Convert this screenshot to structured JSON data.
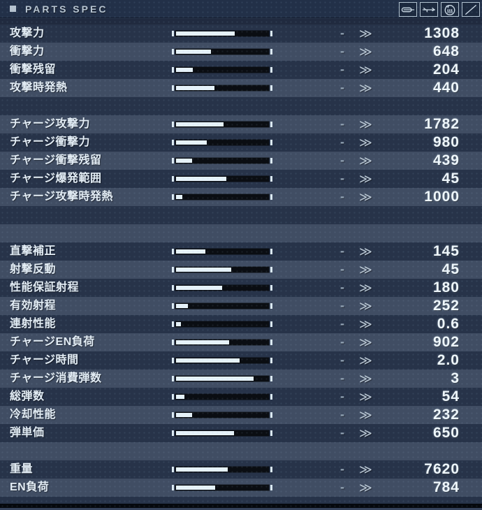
{
  "header": {
    "title": "PARTS SPEC",
    "icons": [
      "shell-icon",
      "rifle-icon",
      "heat-icon",
      "empty-slot-icon"
    ]
  },
  "comparison": {
    "dash": "-",
    "chevron": "≫"
  },
  "colors": {
    "background": "#273349",
    "row_highlight": "#3e4a60",
    "bar_fill": "#e6f2f9",
    "bar_track": "#0a0d12",
    "text": "#e3edf5",
    "value_text": "#eef6fb",
    "header_text": "#b7c4d0"
  },
  "rows": [
    {
      "label": "攻撃力",
      "value": "1308",
      "fill": 63,
      "band": "dark"
    },
    {
      "label": "衝撃力",
      "value": "648",
      "fill": 37,
      "band": "light"
    },
    {
      "label": "衝撃残留",
      "value": "204",
      "fill": 18,
      "band": "dark"
    },
    {
      "label": "攻撃時発熱",
      "value": "440",
      "fill": 41,
      "band": "light"
    },
    {
      "label": null,
      "value": null,
      "fill": 0,
      "band": "dark"
    },
    {
      "label": "チャージ攻撃力",
      "value": "1782",
      "fill": 51,
      "band": "light"
    },
    {
      "label": "チャージ衝撃力",
      "value": "980",
      "fill": 33,
      "band": "dark"
    },
    {
      "label": "チャージ衝撃残留",
      "value": "439",
      "fill": 17,
      "band": "light"
    },
    {
      "label": "チャージ爆発範囲",
      "value": "45",
      "fill": 54,
      "band": "dark"
    },
    {
      "label": "チャージ攻撃時発熱",
      "value": "1000",
      "fill": 7,
      "band": "light"
    },
    {
      "label": null,
      "value": null,
      "fill": 0,
      "band": "dark"
    },
    {
      "label": null,
      "value": null,
      "fill": 0,
      "band": "light"
    },
    {
      "label": "直撃補正",
      "value": "145",
      "fill": 31,
      "band": "dark"
    },
    {
      "label": "射撃反動",
      "value": "45",
      "fill": 59,
      "band": "light"
    },
    {
      "label": "性能保証射程",
      "value": "180",
      "fill": 49,
      "band": "dark"
    },
    {
      "label": "有効射程",
      "value": "252",
      "fill": 13,
      "band": "light"
    },
    {
      "label": "連射性能",
      "value": "0.6",
      "fill": 5,
      "band": "dark"
    },
    {
      "label": "チャージEN負荷",
      "value": "902",
      "fill": 57,
      "band": "light"
    },
    {
      "label": "チャージ時間",
      "value": "2.0",
      "fill": 68,
      "band": "dark"
    },
    {
      "label": "チャージ消費弾数",
      "value": "3",
      "fill": 83,
      "band": "light"
    },
    {
      "label": "総弾数",
      "value": "54",
      "fill": 9,
      "band": "dark"
    },
    {
      "label": "冷却性能",
      "value": "232",
      "fill": 17,
      "band": "light"
    },
    {
      "label": "弾単価",
      "value": "650",
      "fill": 62,
      "band": "dark"
    },
    {
      "label": null,
      "value": null,
      "fill": 0,
      "band": "light"
    },
    {
      "label": "重量",
      "value": "7620",
      "fill": 55,
      "band": "dark"
    },
    {
      "label": "EN負荷",
      "value": "784",
      "fill": 42,
      "band": "light"
    }
  ]
}
